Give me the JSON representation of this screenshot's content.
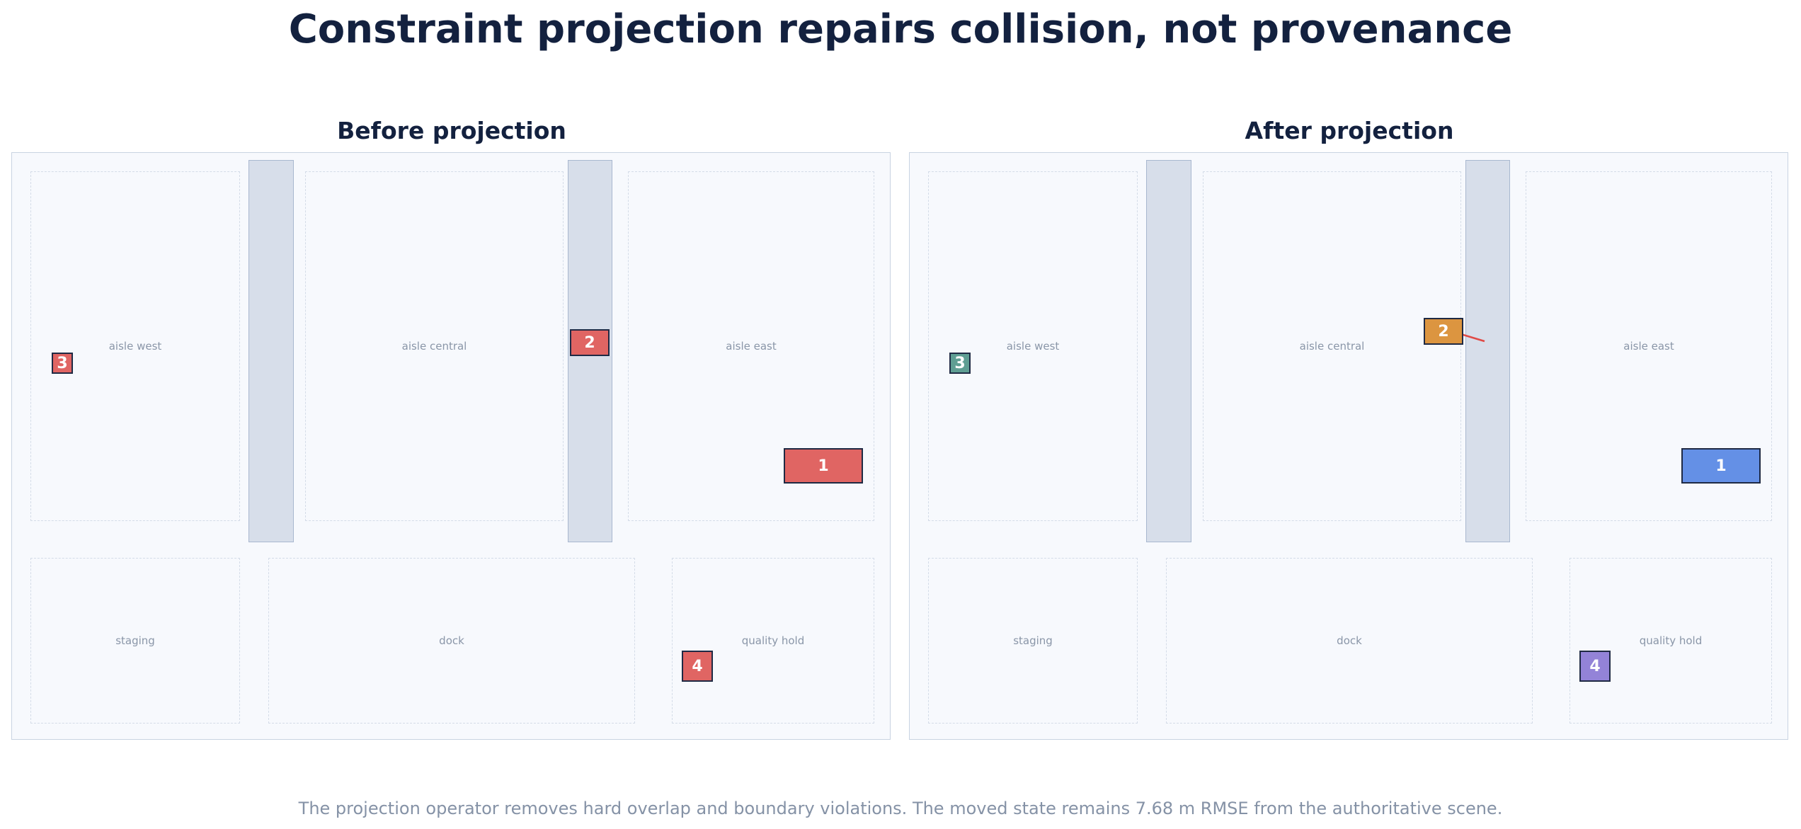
{
  "title": "Constraint projection repairs collision, not provenance",
  "caption": "The projection operator removes hard overlap and boundary violations. The moved state remains 7.68 m RMSE from the authoritative scene.",
  "panels": [
    {
      "title": "Before projection",
      "zones": {
        "aisle_west": "aisle west",
        "aisle_central": "aisle central",
        "aisle_east": "aisle east",
        "staging": "staging",
        "dock": "dock",
        "quality_hold": "quality hold"
      },
      "items": [
        {
          "label": "1",
          "color": "#e06563"
        },
        {
          "label": "2",
          "color": "#e06563"
        },
        {
          "label": "3",
          "color": "#e06563"
        },
        {
          "label": "4",
          "color": "#e06563"
        }
      ]
    },
    {
      "title": "After projection",
      "zones": {
        "aisle_west": "aisle west",
        "aisle_central": "aisle central",
        "aisle_east": "aisle east",
        "staging": "staging",
        "dock": "dock",
        "quality_hold": "quality hold"
      },
      "items": [
        {
          "label": "1",
          "color": "#6490e6"
        },
        {
          "label": "2",
          "color": "#dc9540"
        },
        {
          "label": "3",
          "color": "#5f9e93"
        },
        {
          "label": "4",
          "color": "#9383d8"
        }
      ],
      "arrow_color": "#e04a46"
    }
  ]
}
